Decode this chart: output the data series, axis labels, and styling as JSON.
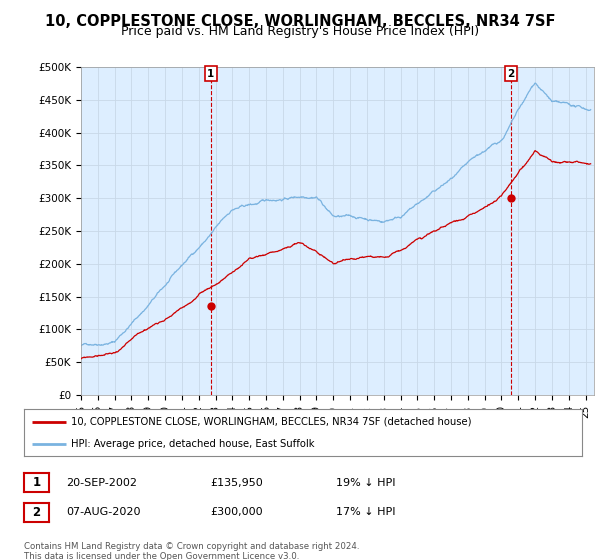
{
  "title": "10, COPPLESTONE CLOSE, WORLINGHAM, BECCLES, NR34 7SF",
  "subtitle": "Price paid vs. HM Land Registry's House Price Index (HPI)",
  "xlim_start": 1995.0,
  "xlim_end": 2025.5,
  "ylim": [
    0,
    500000
  ],
  "yticks": [
    0,
    50000,
    100000,
    150000,
    200000,
    250000,
    300000,
    350000,
    400000,
    450000,
    500000
  ],
  "ytick_labels": [
    "£0",
    "£50K",
    "£100K",
    "£150K",
    "£200K",
    "£250K",
    "£300K",
    "£350K",
    "£400K",
    "£450K",
    "£500K"
  ],
  "sale1_x": 2002.72,
  "sale1_y": 135950,
  "sale2_x": 2020.58,
  "sale2_y": 300000,
  "hpi_color": "#7ab3e0",
  "price_color": "#cc0000",
  "chart_bg": "#ddeeff",
  "legend_line1": "10, COPPLESTONE CLOSE, WORLINGHAM, BECCLES, NR34 7SF (detached house)",
  "legend_line2": "HPI: Average price, detached house, East Suffolk",
  "table_row1": [
    "1",
    "20-SEP-2002",
    "£135,950",
    "19% ↓ HPI"
  ],
  "table_row2": [
    "2",
    "07-AUG-2020",
    "£300,000",
    "17% ↓ HPI"
  ],
  "footnote": "Contains HM Land Registry data © Crown copyright and database right 2024.\nThis data is licensed under the Open Government Licence v3.0.",
  "background_color": "#ffffff",
  "grid_color": "#c8d8e8",
  "title_fontsize": 10.5,
  "subtitle_fontsize": 9,
  "xtick_years": [
    1995,
    1996,
    1997,
    1998,
    1999,
    2000,
    2001,
    2002,
    2003,
    2004,
    2005,
    2006,
    2007,
    2008,
    2009,
    2010,
    2011,
    2012,
    2013,
    2014,
    2015,
    2016,
    2017,
    2018,
    2019,
    2020,
    2021,
    2022,
    2023,
    2024,
    2025
  ],
  "xtick_labels": [
    "95",
    "96",
    "97",
    "98",
    "99",
    "00",
    "01",
    "02",
    "03",
    "04",
    "05",
    "06",
    "07",
    "08",
    "09",
    "10",
    "11",
    "12",
    "13",
    "14",
    "15",
    "16",
    "17",
    "18",
    "19",
    "20",
    "21",
    "22",
    "23",
    "24",
    "25"
  ]
}
